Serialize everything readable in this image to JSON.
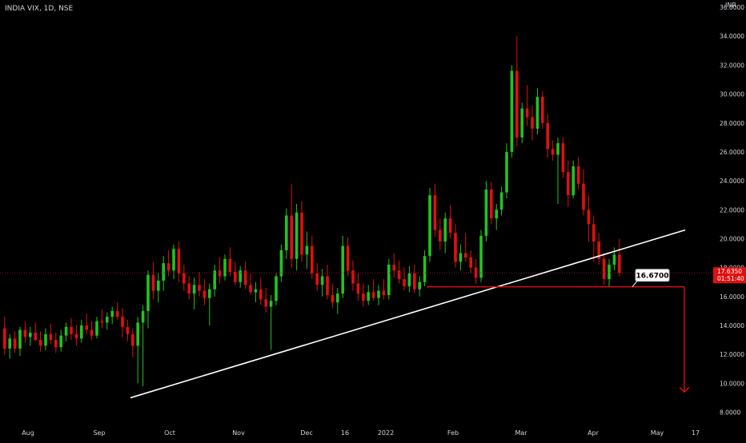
{
  "header": {
    "symbol_label": "INDIA VIX, 1D, NSE",
    "currency": "INR"
  },
  "colors": {
    "background": "#000000",
    "up": "#22c322",
    "down": "#e01010",
    "axis_text": "#d1d4dc",
    "trendline": "#ffffff",
    "support": "#e01010",
    "price_line": "#8b1a1a",
    "badge": "#e01010"
  },
  "chart_data": {
    "type": "candlestick",
    "y_ticks": [
      "8.0000",
      "10.0000",
      "12.0000",
      "14.0000",
      "16.0000",
      "18.0000",
      "20.0000",
      "22.0000",
      "24.0000",
      "26.0000",
      "28.0000",
      "30.0000",
      "32.0000",
      "34.0000",
      "36.0000"
    ],
    "x_ticks": [
      "Aug",
      "Sep",
      "Oct",
      "Nov",
      "Dec",
      "16",
      "2022",
      "Feb",
      "Mar",
      "Apr",
      "May",
      "17"
    ],
    "ylim": [
      7.2,
      36.5
    ],
    "series_hint": "daily OHLC",
    "candles": [
      [
        13.8,
        14.6,
        12.0,
        12.4
      ],
      [
        12.4,
        13.4,
        11.7,
        13.1
      ],
      [
        13.1,
        13.6,
        12.1,
        12.4
      ],
      [
        12.4,
        13.9,
        11.9,
        13.7
      ],
      [
        13.7,
        14.3,
        12.8,
        13.2
      ],
      [
        13.2,
        13.9,
        12.6,
        13.5
      ],
      [
        13.5,
        14.2,
        12.9,
        13.0
      ],
      [
        13.0,
        13.6,
        12.2,
        12.6
      ],
      [
        12.6,
        13.8,
        12.3,
        13.4
      ],
      [
        13.4,
        14.1,
        12.7,
        13.0
      ],
      [
        13.0,
        13.5,
        12.1,
        12.5
      ],
      [
        12.5,
        13.7,
        12.2,
        13.3
      ],
      [
        13.3,
        14.2,
        12.9,
        13.9
      ],
      [
        13.9,
        14.5,
        13.0,
        13.4
      ],
      [
        13.4,
        14.0,
        12.6,
        13.1
      ],
      [
        13.1,
        14.4,
        12.8,
        14.0
      ],
      [
        14.0,
        14.8,
        13.4,
        13.7
      ],
      [
        13.7,
        14.3,
        13.0,
        13.3
      ],
      [
        13.3,
        14.6,
        13.1,
        14.3
      ],
      [
        14.3,
        15.1,
        13.8,
        14.2
      ],
      [
        14.2,
        14.9,
        13.7,
        14.6
      ],
      [
        14.6,
        15.3,
        14.1,
        15.0
      ],
      [
        15.0,
        15.6,
        14.4,
        14.6
      ],
      [
        14.6,
        15.2,
        13.2,
        13.9
      ],
      [
        13.9,
        14.4,
        12.9,
        13.4
      ],
      [
        13.4,
        13.8,
        11.8,
        12.6
      ],
      [
        12.6,
        14.6,
        10.0,
        14.2
      ],
      [
        14.2,
        15.4,
        9.8,
        15.0
      ],
      [
        15.0,
        17.8,
        13.8,
        17.5
      ],
      [
        17.5,
        18.4,
        15.8,
        16.4
      ],
      [
        16.4,
        17.6,
        15.6,
        17.1
      ],
      [
        17.1,
        18.8,
        16.4,
        18.3
      ],
      [
        18.3,
        19.2,
        17.4,
        17.8
      ],
      [
        17.8,
        19.6,
        17.2,
        19.3
      ],
      [
        19.3,
        19.8,
        17.0,
        17.6
      ],
      [
        17.6,
        18.2,
        16.4,
        16.9
      ],
      [
        16.9,
        17.4,
        15.8,
        16.2
      ],
      [
        16.2,
        17.3,
        15.1,
        16.8
      ],
      [
        16.8,
        17.7,
        16.0,
        16.4
      ],
      [
        16.4,
        17.2,
        15.4,
        15.9
      ],
      [
        15.9,
        16.9,
        14.0,
        16.5
      ],
      [
        16.5,
        18.2,
        16.0,
        17.8
      ],
      [
        17.8,
        18.7,
        16.9,
        17.4
      ],
      [
        17.4,
        18.9,
        17.1,
        18.6
      ],
      [
        18.6,
        19.4,
        17.4,
        17.7
      ],
      [
        17.7,
        18.4,
        16.8,
        17.0
      ],
      [
        17.0,
        18.1,
        16.6,
        17.8
      ],
      [
        17.8,
        18.4,
        16.5,
        16.8
      ],
      [
        16.8,
        17.6,
        16.1,
        16.3
      ],
      [
        16.3,
        17.0,
        15.6,
        16.5
      ],
      [
        16.5,
        17.3,
        15.4,
        15.8
      ],
      [
        15.8,
        16.6,
        14.9,
        15.3
      ],
      [
        15.3,
        16.1,
        12.3,
        15.7
      ],
      [
        15.7,
        17.6,
        15.4,
        17.4
      ],
      [
        17.4,
        19.6,
        17.0,
        19.2
      ],
      [
        19.2,
        22.1,
        18.6,
        21.6
      ],
      [
        21.6,
        23.8,
        18.0,
        18.6
      ],
      [
        18.6,
        22.4,
        17.8,
        21.8
      ],
      [
        21.8,
        22.6,
        18.4,
        18.9
      ],
      [
        18.9,
        20.5,
        17.9,
        19.5
      ],
      [
        19.5,
        20.2,
        17.2,
        17.6
      ],
      [
        17.6,
        18.3,
        16.4,
        16.8
      ],
      [
        16.8,
        17.9,
        16.0,
        17.4
      ],
      [
        17.4,
        18.2,
        15.8,
        16.1
      ],
      [
        16.1,
        16.9,
        15.2,
        15.6
      ],
      [
        15.6,
        16.6,
        14.8,
        16.2
      ],
      [
        16.2,
        20.2,
        15.9,
        19.5
      ],
      [
        19.5,
        20.1,
        17.4,
        17.8
      ],
      [
        17.8,
        18.5,
        16.4,
        16.9
      ],
      [
        16.9,
        17.6,
        15.7,
        16.2
      ],
      [
        16.2,
        16.9,
        15.3,
        15.7
      ],
      [
        15.7,
        16.8,
        15.4,
        16.3
      ],
      [
        16.3,
        17.2,
        15.7,
        15.9
      ],
      [
        15.9,
        16.8,
        15.4,
        16.4
      ],
      [
        16.4,
        17.2,
        15.8,
        16.1
      ],
      [
        16.1,
        18.6,
        15.8,
        18.2
      ],
      [
        18.2,
        19.0,
        17.3,
        17.8
      ],
      [
        17.8,
        18.5,
        16.9,
        17.2
      ],
      [
        17.2,
        18.0,
        16.4,
        16.7
      ],
      [
        16.7,
        18.1,
        16.3,
        17.6
      ],
      [
        17.6,
        18.2,
        16.2,
        16.5
      ],
      [
        16.5,
        17.4,
        16.0,
        17.0
      ],
      [
        17.0,
        19.2,
        16.7,
        18.8
      ],
      [
        18.8,
        23.5,
        18.4,
        23.0
      ],
      [
        23.0,
        23.8,
        20.1,
        20.6
      ],
      [
        20.6,
        21.4,
        19.2,
        19.8
      ],
      [
        19.8,
        21.8,
        19.0,
        21.4
      ],
      [
        21.4,
        22.3,
        20.0,
        20.4
      ],
      [
        20.4,
        21.0,
        18.0,
        18.4
      ],
      [
        18.4,
        19.6,
        17.8,
        19.0
      ],
      [
        19.0,
        20.4,
        18.4,
        18.7
      ],
      [
        18.7,
        19.2,
        17.6,
        18.0
      ],
      [
        18.0,
        18.6,
        16.9,
        17.3
      ],
      [
        17.3,
        20.6,
        17.0,
        20.2
      ],
      [
        20.2,
        24.0,
        19.8,
        23.4
      ],
      [
        23.4,
        23.9,
        21.0,
        21.4
      ],
      [
        21.4,
        22.4,
        20.6,
        22.0
      ],
      [
        22.0,
        23.6,
        21.6,
        23.2
      ],
      [
        23.2,
        26.6,
        22.8,
        26.0
      ],
      [
        26.0,
        32.0,
        25.6,
        31.6
      ],
      [
        31.6,
        34.0,
        26.4,
        27.0
      ],
      [
        27.0,
        29.4,
        26.6,
        29.0
      ],
      [
        29.0,
        30.6,
        27.8,
        28.4
      ],
      [
        28.4,
        29.2,
        26.8,
        27.6
      ],
      [
        27.6,
        30.4,
        27.2,
        29.8
      ],
      [
        29.8,
        30.2,
        27.6,
        28.0
      ],
      [
        28.0,
        28.6,
        25.6,
        26.2
      ],
      [
        26.2,
        26.8,
        25.4,
        25.8
      ],
      [
        25.8,
        27.0,
        22.4,
        26.6
      ],
      [
        26.6,
        27.0,
        24.2,
        24.6
      ],
      [
        24.6,
        25.4,
        22.2,
        23.0
      ],
      [
        23.0,
        25.4,
        22.8,
        25.0
      ],
      [
        25.0,
        25.6,
        23.4,
        23.8
      ],
      [
        23.8,
        24.8,
        21.6,
        22.0
      ],
      [
        22.0,
        23.0,
        19.8,
        21.0
      ],
      [
        21.0,
        21.6,
        18.4,
        19.8
      ],
      [
        19.8,
        20.4,
        18.2,
        18.6
      ],
      [
        18.6,
        19.0,
        16.8,
        17.2
      ],
      [
        17.2,
        18.6,
        16.7,
        18.2
      ],
      [
        18.2,
        19.4,
        17.8,
        18.9
      ],
      [
        18.9,
        20.0,
        17.4,
        17.64
      ]
    ],
    "trendline": {
      "from": [
        "2021-09-17",
        9.0
      ],
      "to": [
        "2022-05-06",
        20.6
      ]
    },
    "support_level": "16.6700",
    "last_price": "17.6350",
    "countdown": "01:51:40",
    "projection_target": 9.4
  }
}
